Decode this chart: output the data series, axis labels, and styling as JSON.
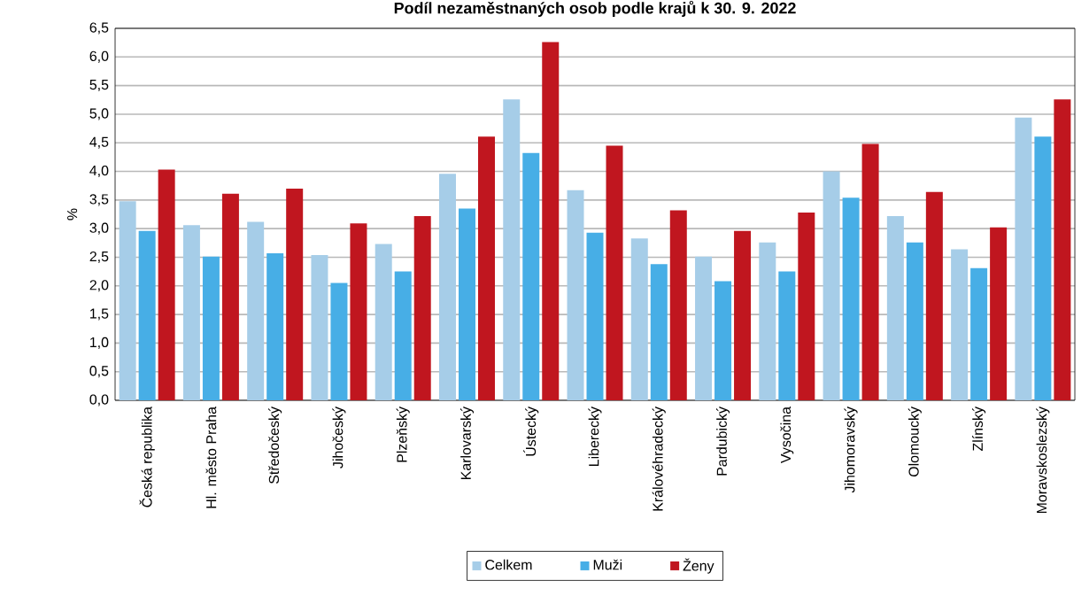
{
  "chart_data": {
    "type": "bar",
    "title": "Podíl nezaměstnaných osob podle krajů k 30. 9. 2022",
    "ylabel": "%",
    "categories": [
      "Česká republika",
      "Hl. město Praha",
      "Středočeský",
      "Jihočeský",
      "Plzeňský",
      "Karlovarský",
      "Ústecký",
      "Liberecký",
      "Královéhradecký",
      "Pardubický",
      "Vysočina",
      "Jihomoravský",
      "Olomoucký",
      "Zlínský",
      "Moravskoslezský"
    ],
    "series": [
      {
        "name": "Celkem",
        "color": "#a6cde8",
        "values": [
          3.48,
          3.06,
          3.12,
          2.54,
          2.73,
          3.96,
          5.26,
          3.67,
          2.83,
          2.51,
          2.76,
          4.0,
          3.22,
          2.64,
          4.94
        ]
      },
      {
        "name": "Muži",
        "color": "#47aee6",
        "values": [
          2.96,
          2.51,
          2.57,
          2.05,
          2.25,
          3.35,
          4.32,
          2.93,
          2.38,
          2.08,
          2.25,
          3.54,
          2.76,
          2.31,
          4.61
        ]
      },
      {
        "name": "Ženy",
        "color": "#c0161f",
        "values": [
          4.03,
          3.61,
          3.7,
          3.09,
          3.22,
          4.61,
          6.26,
          4.45,
          3.32,
          2.96,
          3.28,
          4.48,
          3.64,
          3.02,
          5.26
        ]
      }
    ],
    "ylim": [
      0,
      6.5
    ],
    "yticks": [
      {
        "value": 0,
        "label": "0,0"
      },
      {
        "value": 0.5,
        "label": "0,5"
      },
      {
        "value": 1,
        "label": "1,0"
      },
      {
        "value": 1.5,
        "label": "1,5"
      },
      {
        "value": 2,
        "label": "2,0"
      },
      {
        "value": 2.5,
        "label": "2,5"
      },
      {
        "value": 3,
        "label": "3,0"
      },
      {
        "value": 3.5,
        "label": "3,5"
      },
      {
        "value": 4,
        "label": "4,0"
      },
      {
        "value": 4.5,
        "label": "4,5"
      },
      {
        "value": 5,
        "label": "5,0"
      },
      {
        "value": 5.5,
        "label": "5,5"
      },
      {
        "value": 6,
        "label": "6,0"
      },
      {
        "value": 6.5,
        "label": "6,5"
      }
    ],
    "grid": "y",
    "legend": "bottom"
  }
}
